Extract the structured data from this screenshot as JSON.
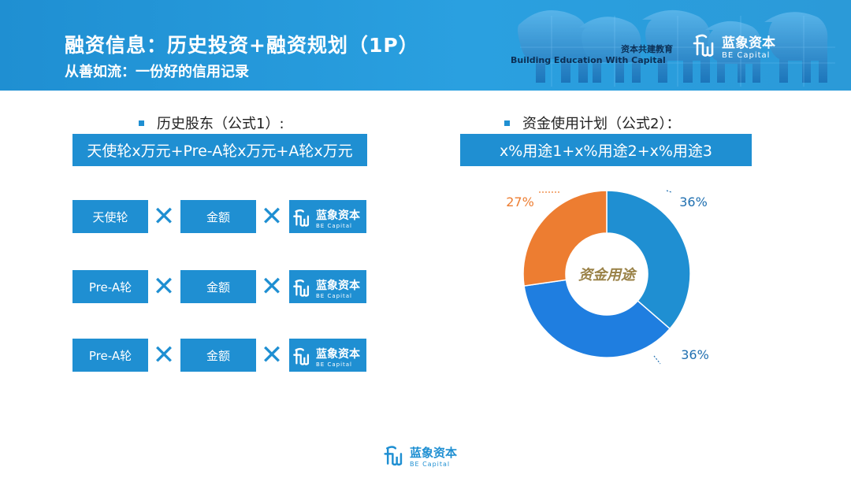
{
  "header": {
    "title": "融资信息：历史投资+融资规划（1P）",
    "subtitle": "从善如流：一份好的信用记录",
    "tagline_cn": "资本共建教育",
    "tagline_en": "Building Education With Capital",
    "brand_cn": "蓝象资本",
    "brand_en": "BE Capital"
  },
  "left": {
    "heading": "历史股东（公式1）:",
    "formula": "天使轮x万元+Pre-A轮x万元+A轮x万元",
    "rows": [
      {
        "round": "天使轮",
        "amount": "金额",
        "brand_cn": "蓝象资本",
        "brand_en": "BE Capital"
      },
      {
        "round": "Pre-A轮",
        "amount": "金额",
        "brand_cn": "蓝象资本",
        "brand_en": "BE Capital"
      },
      {
        "round": "Pre-A轮",
        "amount": "金额",
        "brand_cn": "蓝象资本",
        "brand_en": "BE Capital"
      }
    ],
    "times_symbol": "✕"
  },
  "right": {
    "heading": "资金使用计划（公式2）：",
    "formula": "x%用途1+x%用途2+x%用途3"
  },
  "chart_data": {
    "type": "pie",
    "donut": true,
    "center_label": "资金用途",
    "slices": [
      {
        "value": 36,
        "label": "36%",
        "color": "#1f8fd2",
        "label_color": "#1f6fb0"
      },
      {
        "value": 36,
        "label": "36%",
        "color": "#1f7ee0",
        "label_color": "#1f6fb0"
      },
      {
        "value": 27,
        "label": "27%",
        "color": "#ed7d31",
        "label_color": "#ed7d31"
      }
    ],
    "title": "",
    "legend": "none"
  },
  "footer": {
    "brand_cn": "蓝象资本",
    "brand_en": "BE Capital"
  },
  "colors": {
    "accent": "#1f8fd2",
    "orange": "#ed7d31"
  }
}
